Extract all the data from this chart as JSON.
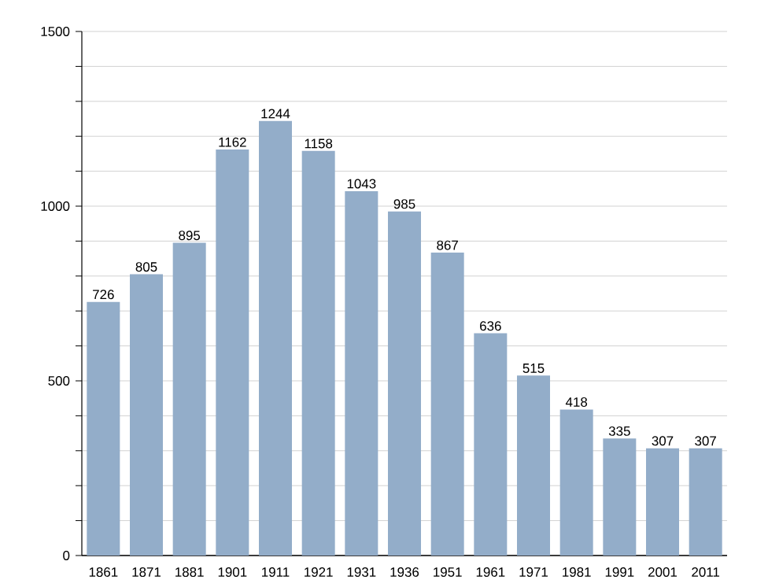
{
  "chart_data": {
    "type": "bar",
    "categories": [
      "1861",
      "1871",
      "1881",
      "1901",
      "1911",
      "1921",
      "1931",
      "1936",
      "1951",
      "1961",
      "1971",
      "1981",
      "1991",
      "2001",
      "2011"
    ],
    "values": [
      726,
      805,
      895,
      1162,
      1244,
      1158,
      1043,
      985,
      867,
      636,
      515,
      418,
      335,
      307,
      307
    ],
    "color": "#93adc9",
    "ylim": [
      0,
      1500
    ],
    "yticks": [
      0,
      {
        "value": 100,
        "label": null
      },
      {
        "value": 200,
        "label": null
      },
      {
        "value": 300,
        "label": null
      },
      {
        "value": 400,
        "label": null
      },
      500,
      {
        "value": 600,
        "label": null
      },
      {
        "value": 700,
        "label": null
      },
      {
        "value": 800,
        "label": null
      },
      {
        "value": 900,
        "label": null
      },
      1000,
      {
        "value": 1100,
        "label": null
      },
      {
        "value": 1200,
        "label": null
      },
      {
        "value": 1300,
        "label": null
      },
      {
        "value": 1400,
        "label": null
      },
      1500
    ],
    "grid": "y",
    "data_labels": true
  }
}
